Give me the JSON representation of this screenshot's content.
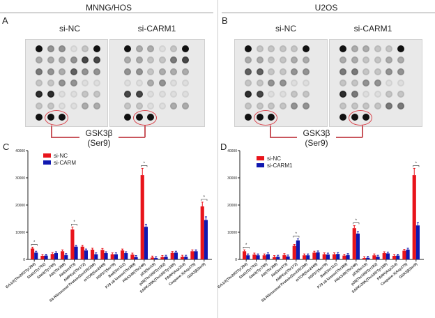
{
  "figure": {
    "left_column_title": "MNNG/HOS",
    "right_column_title": "U2OS",
    "panels": {
      "A": {
        "letter": "A",
        "conditions": [
          "si-NC",
          "si-CARM1"
        ],
        "highlight_label_line1": "GSK3β",
        "highlight_label_line2": "(Ser9)"
      },
      "B": {
        "letter": "B",
        "conditions": [
          "si-NC",
          "si-CARM1"
        ],
        "highlight_label_line1": "GSK3β",
        "highlight_label_line2": "(Ser9)"
      },
      "C": {
        "letter": "C",
        "legend": [
          "si-NC",
          "si-CARM"
        ]
      },
      "D": {
        "letter": "D",
        "legend": [
          "si-NC",
          "si-CARM1"
        ]
      }
    },
    "colors": {
      "si_nc": "#e8141b",
      "si_carm": "#1018b0",
      "highlight": "#d9454d"
    }
  },
  "chart_data": [
    {
      "type": "bar",
      "title": "C - MNNG/HOS",
      "xlabel": "",
      "ylabel": "",
      "ylim": [
        0,
        40000
      ],
      "yticks": [
        0,
        10000,
        20000,
        30000,
        40000
      ],
      "legend_position": "top-left",
      "categories": [
        "Erk1/2(Thr202/Tyr204)",
        "Stat1(Tyr701)",
        "Stat3(Tyr705)",
        "Akt(Thr308)",
        "Akt(Ser473)",
        "AMPKα(Thr172)",
        "S6 Ribosomal Protein(Ser235/236)",
        "mTOR(Ser2448)",
        "HSP27(Ser78)",
        "Bad(Ser112)",
        "P70 s6 kinase(Thr389)",
        "PRAS40(Thr246)",
        "p53(Ser15)",
        "p38(Thr180/Tyr182)",
        "SAPK/JNK(Thr183/Tyr185)",
        "PARP(Asp214)",
        "Caspase-3(Asp175)",
        "GSK3β(Ser9)"
      ],
      "series": [
        {
          "name": "si-NC",
          "values": [
            4000,
            1300,
            2000,
            3000,
            11000,
            4700,
            3600,
            3500,
            1900,
            3300,
            1800,
            31000,
            700,
            900,
            2400,
            1000,
            3000,
            19500
          ]
        },
        {
          "name": "si-CARM",
          "values": [
            2500,
            1400,
            2300,
            1600,
            4700,
            3300,
            1900,
            2300,
            1900,
            2300,
            900,
            12000,
            500,
            1000,
            2500,
            1000,
            3000,
            14500
          ]
        }
      ],
      "significance": [
        "Erk1/2(Thr202/Tyr204)",
        "Akt(Ser473)",
        "PRAS40(Thr246)",
        "GSK3β(Ser9)"
      ],
      "annotation": "*"
    },
    {
      "type": "bar",
      "title": "D - U2OS",
      "xlabel": "",
      "ylabel": "",
      "ylim": [
        0,
        40000
      ],
      "yticks": [
        0,
        10000,
        20000,
        30000,
        40000
      ],
      "legend_position": "top-left",
      "categories": [
        "Erk1/2(Thr202/Tyr204)",
        "Stat1(Tyr701)",
        "Stat3(Tyr705)",
        "Akt(Thr308)",
        "Akt(Ser473)",
        "AMPKα(Thr172)",
        "S6 Ribosomal Protein(Ser235/236)",
        "mTOR(Ser2448)",
        "HSP27(Ser78)",
        "Bad(Ser112)",
        "P70 s6 kinase(Thr389)",
        "PRAS40(Thr246)",
        "p53(Ser15)",
        "p38(Thr180/Tyr182)",
        "SAPK/JNK(Thr183/Tyr185)",
        "PARP(Asp214)",
        "Caspase-3(Asp175)",
        "GSK3β(Ser9)"
      ],
      "series": [
        {
          "name": "si-NC",
          "values": [
            3000,
            1800,
            1500,
            900,
            1600,
            5000,
            1500,
            2500,
            1900,
            1900,
            1400,
            11500,
            500,
            1500,
            2300,
            1300,
            3200,
            31000
          ]
        },
        {
          "name": "si-CARM1",
          "values": [
            1500,
            1500,
            1900,
            1000,
            1100,
            7000,
            1500,
            2600,
            1800,
            2000,
            1600,
            9500,
            600,
            1000,
            2200,
            1400,
            3600,
            12500
          ]
        }
      ],
      "significance": [
        "Erk1/2(Thr202/Tyr204)",
        "AMPKα(Thr172)",
        "PRAS40(Thr246)",
        "GSK3β(Ser9)"
      ],
      "annotation": "*"
    }
  ]
}
